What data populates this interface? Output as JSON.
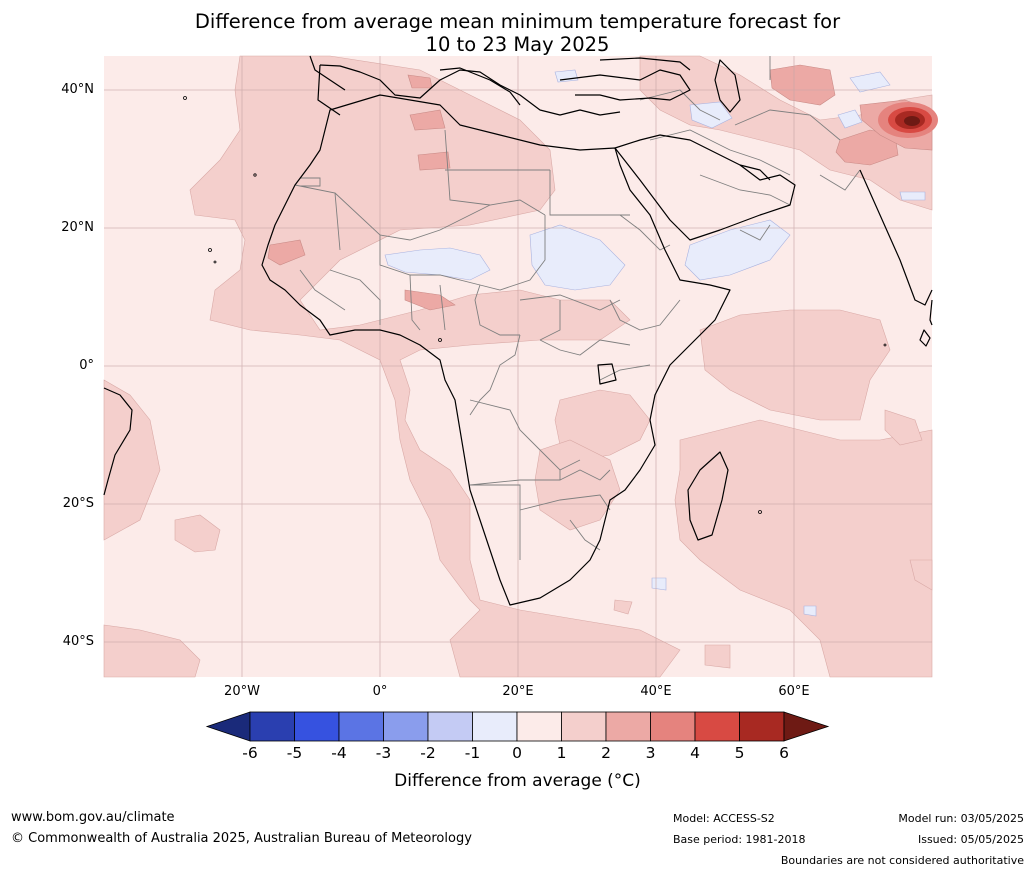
{
  "title_line1": "Difference from average mean minimum temperature forecast for",
  "title_line2": "10 to 23 May 2025",
  "lat_ticks": [
    "40°N",
    "20°N",
    "0°",
    "20°S",
    "40°S"
  ],
  "lon_ticks": [
    "20°W",
    "0°",
    "20°E",
    "40°E",
    "60°E"
  ],
  "colorbar": {
    "labels": [
      "-6",
      "-5",
      "-4",
      "-3",
      "-2",
      "-1",
      "0",
      "1",
      "2",
      "3",
      "4",
      "5",
      "6"
    ],
    "colors": [
      "#1a2a7a",
      "#2a3fb0",
      "#3652e0",
      "#5b74e4",
      "#8a9ded",
      "#c4cbf4",
      "#e8ecfb",
      "#fcebe9",
      "#f4cfcc",
      "#eca9a5",
      "#e5837e",
      "#d84a43",
      "#a82922",
      "#6e1a14"
    ],
    "title": "Difference from average (°C)"
  },
  "footer": {
    "website": "www.bom.gov.au/climate",
    "copyright": "© Commonwealth of Australia 2025, Australian Bureau of Meteorology",
    "model": "Model: ACCESS-S2",
    "base_period": "Base period: 1981-2018",
    "model_run": "Model run: 03/05/2025",
    "issued": "Issued: 05/05/2025",
    "disclaimer": "Boundaries are not considered authoritative"
  }
}
